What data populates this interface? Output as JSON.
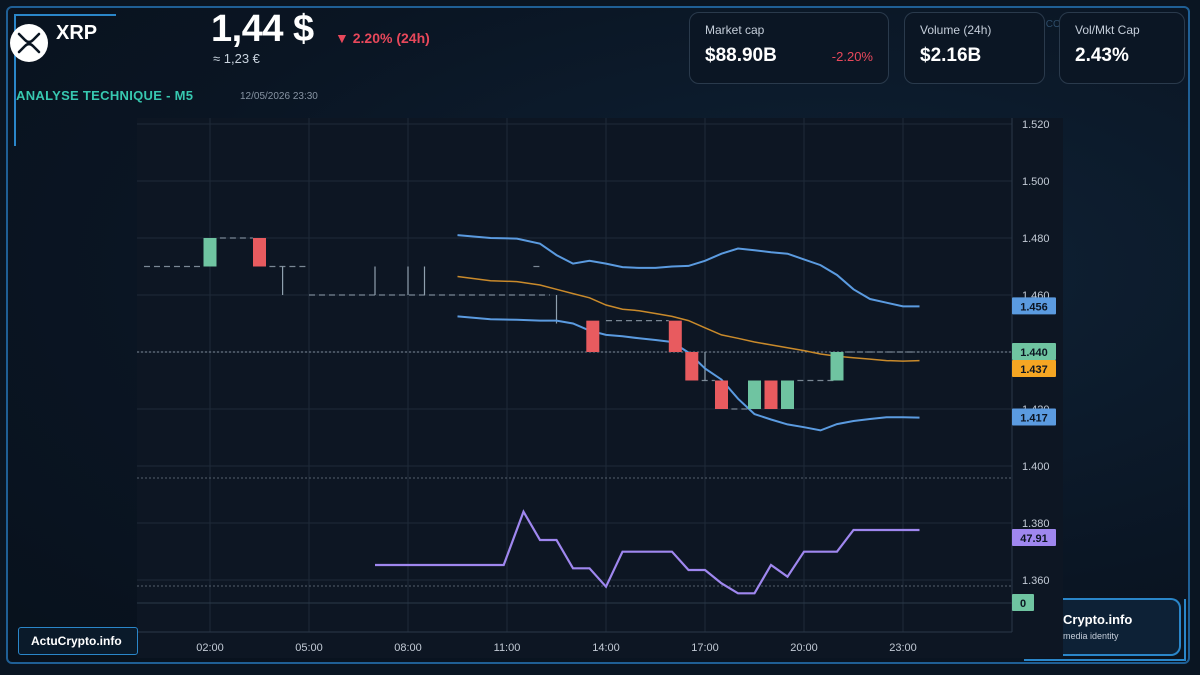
{
  "header": {
    "coin": "XRP",
    "price": "1,44 $",
    "price_eur": "≈ 1,23 €",
    "change": "▼ 2.20% (24h)",
    "section_title": "ANALYSE TECHNIQUE - M5",
    "timestamp": "12/05/2026 23:30",
    "corner_text": "ICO"
  },
  "stats": [
    {
      "label": "Market cap",
      "value": "$88.90B",
      "delta": "-2.20%"
    },
    {
      "label": "Volume (24h)",
      "value": "$2.16B",
      "delta": ""
    },
    {
      "label": "Vol/Mkt Cap",
      "value": "2.43%",
      "delta": ""
    }
  ],
  "footer": {
    "watermark": "ActuCrypto.info",
    "brand_name": "Crypto.info",
    "brand_tag": "media identity"
  },
  "colors": {
    "up": "#6fc4a1",
    "down": "#e85b5f",
    "band": "#5b9be0",
    "middle": "#c98a2b",
    "oscillator": "#9f87ef",
    "accent": "#37c8b0",
    "negative": "#e8485b",
    "frame": "#2a86c9"
  },
  "chart_data": {
    "type": "candlestick",
    "x_ticks": [
      "02:00",
      "05:00",
      "08:00",
      "11:00",
      "14:00",
      "17:00",
      "20:00",
      "23:00"
    ],
    "x_tick_times": [
      2,
      5,
      8,
      11,
      14,
      17,
      20,
      23
    ],
    "ylim": [
      1.35,
      1.525
    ],
    "y_ticks": [
      "1.360",
      "1.380",
      "1.400",
      "1.420",
      "1.440",
      "1.460",
      "1.480",
      "1.500",
      "1.520"
    ],
    "y_tick_values": [
      1.36,
      1.38,
      1.4,
      1.42,
      1.44,
      1.46,
      1.48,
      1.5,
      1.52
    ],
    "grid": true,
    "candles": [
      {
        "t": 2.0,
        "o": 1.47,
        "c": 1.48
      },
      {
        "t": 3.5,
        "o": 1.48,
        "c": 1.47
      },
      {
        "t": 13.6,
        "o": 1.451,
        "c": 1.44
      },
      {
        "t": 16.1,
        "o": 1.451,
        "c": 1.44
      },
      {
        "t": 16.6,
        "o": 1.44,
        "c": 1.43
      },
      {
        "t": 17.5,
        "o": 1.43,
        "c": 1.42
      },
      {
        "t": 18.5,
        "o": 1.42,
        "c": 1.43
      },
      {
        "t": 19.0,
        "o": 1.43,
        "c": 1.42
      },
      {
        "t": 19.5,
        "o": 1.42,
        "c": 1.43
      },
      {
        "t": 21.0,
        "o": 1.43,
        "c": 1.44
      }
    ],
    "flat_bars": [
      {
        "t0": 0.0,
        "t1": 1.8,
        "y": 1.47
      },
      {
        "t0": 2.3,
        "t1": 3.3,
        "y": 1.48
      },
      {
        "t0": 3.8,
        "t1": 5.0,
        "y": 1.47
      },
      {
        "t0": 5.0,
        "t1": 12.3,
        "y": 1.46
      },
      {
        "t0": 11.8,
        "t1": 12.1,
        "y": 1.47
      },
      {
        "t0": 14.0,
        "t1": 15.9,
        "y": 1.451
      },
      {
        "t0": 16.9,
        "t1": 17.3,
        "y": 1.43
      },
      {
        "t0": 17.8,
        "t1": 18.3,
        "y": 1.42
      },
      {
        "t0": 19.8,
        "t1": 20.9,
        "y": 1.43
      },
      {
        "t0": 21.3,
        "t1": 23.5,
        "y": 1.44
      }
    ],
    "wicks": [
      {
        "t": 4.2,
        "lo": 1.46,
        "hi": 1.47
      },
      {
        "t": 7.0,
        "lo": 1.46,
        "hi": 1.47
      },
      {
        "t": 8.0,
        "lo": 1.46,
        "hi": 1.47
      },
      {
        "t": 8.5,
        "lo": 1.46,
        "hi": 1.47
      },
      {
        "t": 12.5,
        "lo": 1.45,
        "hi": 1.46
      },
      {
        "t": 17.0,
        "lo": 1.43,
        "hi": 1.44
      }
    ],
    "upper_band": {
      "t": [
        9.5,
        10.5,
        11.3,
        12.0,
        12.5,
        13.0,
        13.5,
        14.0,
        14.5,
        15.0,
        15.5,
        16.0,
        16.5,
        17.0,
        17.5,
        18.0,
        18.5,
        19.0,
        19.5,
        20.0,
        20.5,
        21.0,
        21.5,
        22.0,
        22.5,
        23.0,
        23.5
      ],
      "v": [
        1.481,
        1.48,
        1.4798,
        1.478,
        1.474,
        1.471,
        1.472,
        1.471,
        1.4698,
        1.4695,
        1.4695,
        1.47,
        1.4702,
        1.472,
        1.4745,
        1.4763,
        1.4757,
        1.475,
        1.4745,
        1.4725,
        1.4705,
        1.467,
        1.462,
        1.4586,
        1.4573,
        1.456,
        1.456
      ]
    },
    "middle_band": {
      "t": [
        9.5,
        10.5,
        11.3,
        12.0,
        12.5,
        13.0,
        13.5,
        14.0,
        14.5,
        15.0,
        15.5,
        16.0,
        16.5,
        17.0,
        17.5,
        18.0,
        18.5,
        19.0,
        19.5,
        20.0,
        20.5,
        21.0,
        21.5,
        22.0,
        22.5,
        23.0,
        23.5
      ],
      "v": [
        1.4665,
        1.465,
        1.4647,
        1.4635,
        1.462,
        1.4605,
        1.459,
        1.4565,
        1.455,
        1.4545,
        1.4535,
        1.4525,
        1.451,
        1.4485,
        1.446,
        1.4448,
        1.4435,
        1.4425,
        1.4415,
        1.4405,
        1.4393,
        1.4385,
        1.438,
        1.4375,
        1.437,
        1.4368,
        1.437
      ]
    },
    "lower_band": {
      "t": [
        9.5,
        10.5,
        11.3,
        12.0,
        12.5,
        13.0,
        13.5,
        14.0,
        14.5,
        15.0,
        15.5,
        16.0,
        16.5,
        17.0,
        17.5,
        18.0,
        18.5,
        19.0,
        19.5,
        20.0,
        20.5,
        21.0,
        21.5,
        22.0,
        22.5,
        23.0,
        23.5
      ],
      "v": [
        1.4525,
        1.4515,
        1.4513,
        1.451,
        1.451,
        1.45,
        1.4475,
        1.446,
        1.4455,
        1.4448,
        1.4442,
        1.4435,
        1.4398,
        1.4342,
        1.4303,
        1.4236,
        1.4182,
        1.4163,
        1.4146,
        1.4136,
        1.4125,
        1.4147,
        1.4158,
        1.4165,
        1.4171,
        1.4171,
        1.417
      ]
    },
    "oscillator": {
      "t": [
        7.0,
        9.0,
        10.0,
        10.9,
        11.5,
        12.0,
        12.5,
        13.0,
        13.5,
        14.0,
        14.5,
        15.0,
        15.5,
        16.0,
        16.5,
        17.0,
        17.5,
        18.0,
        18.5,
        19.0,
        19.5,
        20.0,
        20.5,
        21.0,
        21.5,
        22.0,
        22.5,
        23.0,
        23.5
      ],
      "v": [
        27,
        27,
        27,
        27,
        59,
        42,
        42,
        25,
        25,
        14,
        35,
        35,
        35,
        35,
        24,
        24,
        16,
        10,
        10,
        27,
        20,
        35,
        35,
        35,
        48,
        48,
        48,
        48,
        48
      ]
    },
    "oscillator_range": [
      0,
      100
    ],
    "labels": {
      "upper": "1.456",
      "last_price": "1.440",
      "middle": "1.437",
      "lower": "1.417",
      "oscillator": "47.91",
      "oscillator_zero": "0"
    }
  }
}
